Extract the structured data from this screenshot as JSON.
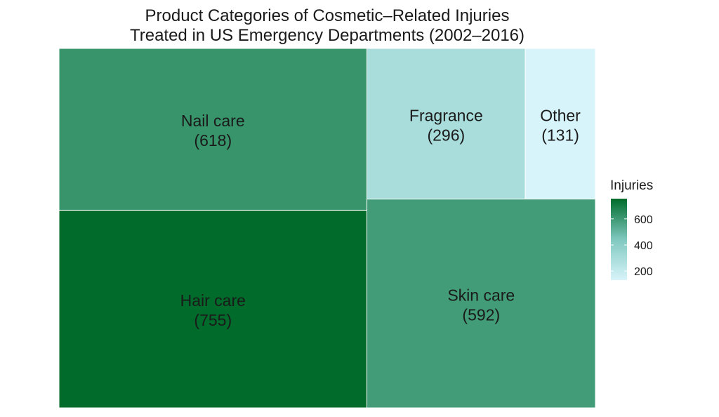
{
  "chart_data": {
    "type": "treemap",
    "title": [
      "Product Categories of Cosmetic–Related Injuries",
      "Treated in US Emergency Departments (2002–2016)"
    ],
    "value_name": "Injuries",
    "items": [
      {
        "label": "Nail care",
        "value": 618
      },
      {
        "label": "Hair care",
        "value": 755
      },
      {
        "label": "Fragrance",
        "value": 296
      },
      {
        "label": "Other",
        "value": 131
      },
      {
        "label": "Skin care",
        "value": 592
      }
    ],
    "legend": {
      "title": "Injuries",
      "ticks": [
        200,
        400,
        600
      ],
      "range": [
        131,
        755
      ],
      "colors": {
        "low": "#d8f4fb",
        "mid": "#7fc8bf",
        "high": "#006b2a"
      },
      "placement": "right"
    }
  }
}
